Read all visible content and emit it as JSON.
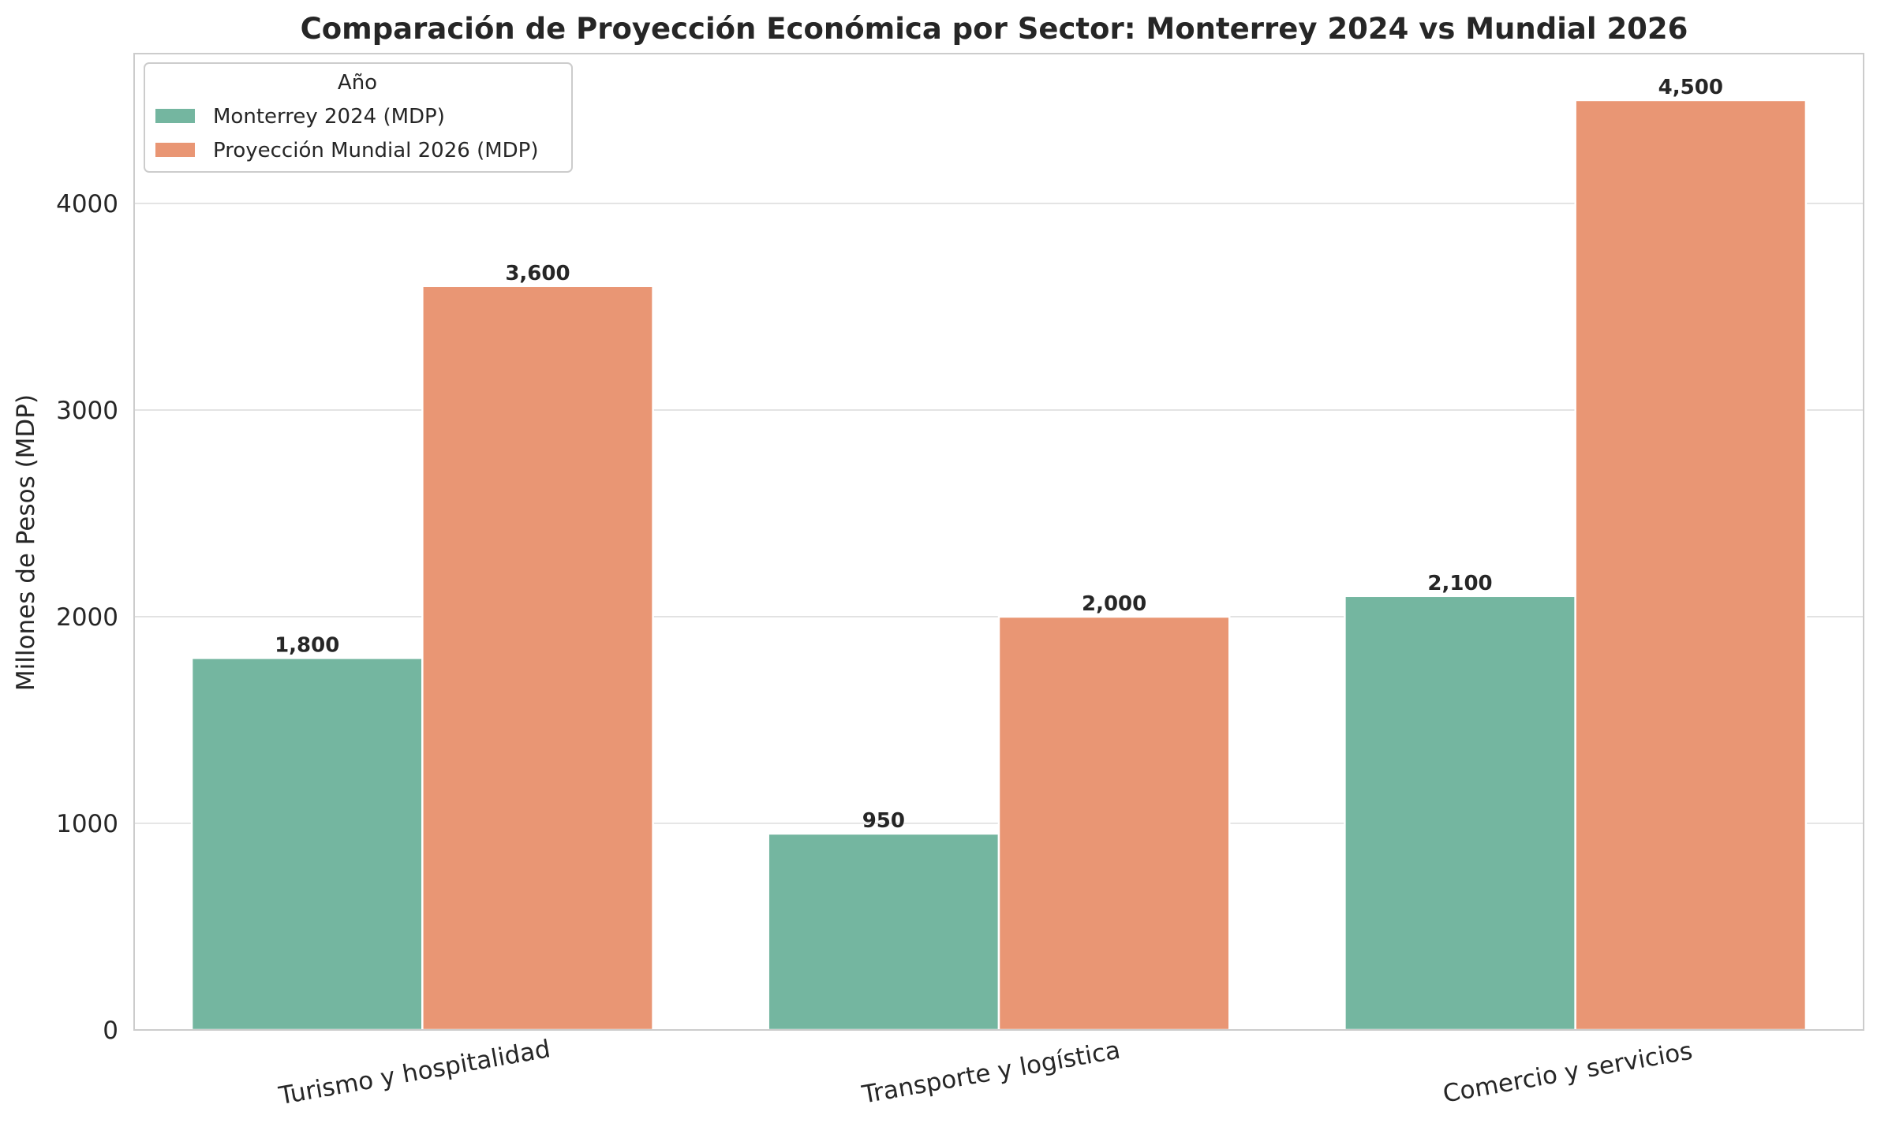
{
  "chart_data": {
    "type": "bar",
    "title": "Comparación de Proyección Económica por Sector: Monterrey 2024 vs Mundial 2026",
    "xlabel": "",
    "ylabel": "Millones de Pesos (MDP)",
    "categories": [
      "Turismo y hospitalidad",
      "Transporte y logística",
      "Comercio y servicios"
    ],
    "series": [
      {
        "name": "Monterrey 2024 (MDP)",
        "color": "#74b6a0",
        "values": [
          1800,
          950,
          2100
        ],
        "labels": [
          "1,800",
          "950",
          "2,100"
        ]
      },
      {
        "name": "Proyección Mundial 2026 (MDP)",
        "color": "#e99674",
        "values": [
          3600,
          2000,
          4500
        ],
        "labels": [
          "3,600",
          "2,000",
          "4,500"
        ]
      }
    ],
    "ylim": [
      0,
      4725
    ],
    "yticks": [
      0,
      1000,
      2000,
      3000,
      4000
    ],
    "ytick_labels": [
      "0",
      "1000",
      "2000",
      "3000",
      "4000"
    ],
    "legend": {
      "title": "Año",
      "placement": "top-left"
    },
    "grid": "horizontal",
    "xtick_rotation": -10
  }
}
